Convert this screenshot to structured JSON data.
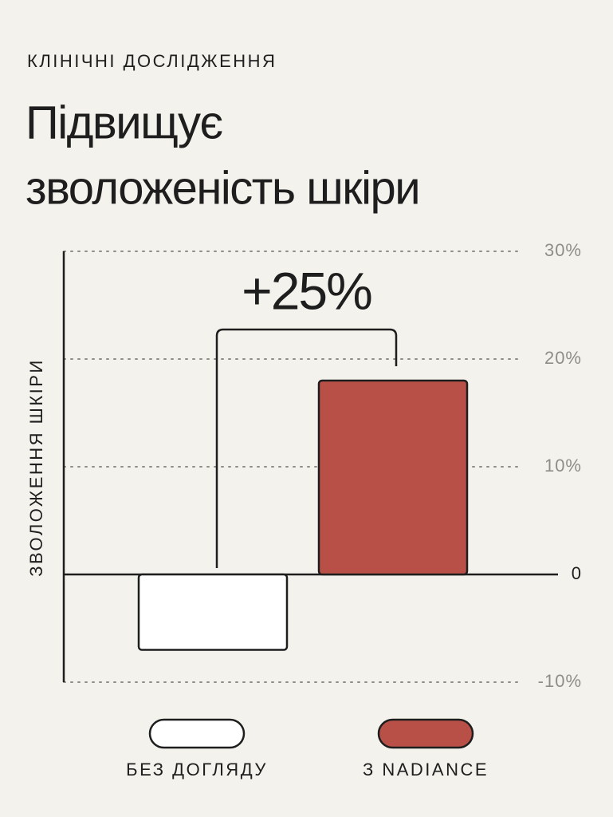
{
  "chart_data": {
    "type": "bar",
    "kicker": "КЛІНІЧНІ ДОСЛІДЖЕННЯ",
    "title_lines": [
      "Підвищує",
      "зволоженість шкіри"
    ],
    "y_label": "ЗВОЛОЖЕННЯ ШКІРИ",
    "annotation": "+25%",
    "series": [
      {
        "name": "БЕЗ ДОГЛЯДУ",
        "color": "#ffffff",
        "values": [
          -7
        ]
      },
      {
        "name": "З NADIANCE",
        "color": "#b85048",
        "values": [
          18
        ]
      }
    ],
    "ylim": [
      -10,
      30
    ],
    "yticks": [
      {
        "value": -10,
        "label": "-10%"
      },
      0,
      {
        "value": 10,
        "label": "10%"
      },
      {
        "value": 20,
        "label": "20%"
      },
      {
        "value": 30,
        "label": "30%"
      }
    ],
    "grid": true
  }
}
